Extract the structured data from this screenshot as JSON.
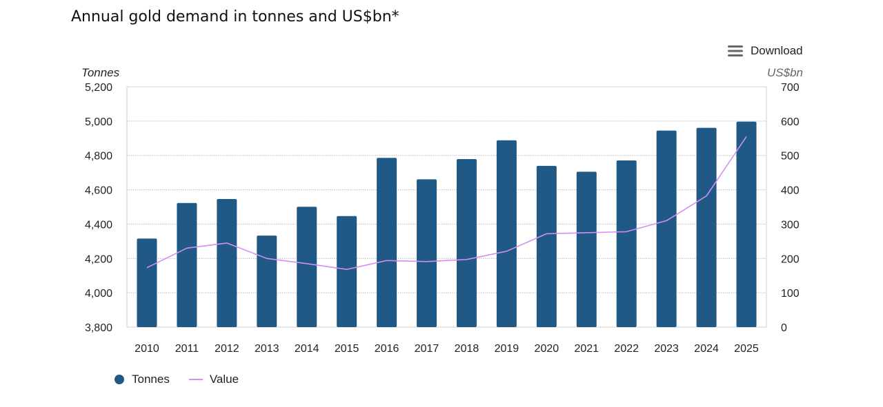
{
  "title": "Annual gold demand in tonnes and US$bn*",
  "download": {
    "label": "Download",
    "icon": "hamburger-menu-icon"
  },
  "colors": {
    "bar": "#205986",
    "line": "#d58ef0",
    "grid": "#b8b8b8",
    "axis_frame": "#cfcfcf",
    "axis_title": "#666666"
  },
  "chart_data": {
    "type": "bar",
    "title": "Annual gold demand in tonnes and US$bn*",
    "categories": [
      "2010",
      "2011",
      "2012",
      "2013",
      "2014",
      "2015",
      "2016",
      "2017",
      "2018",
      "2019",
      "2020",
      "2021",
      "2022",
      "2023",
      "2024",
      "2025"
    ],
    "series": [
      {
        "name": "Tonnes",
        "type": "bar",
        "axis": "left",
        "values": [
          4316,
          4523,
          4546,
          4333,
          4501,
          4447,
          4786,
          4661,
          4779,
          4888,
          4739,
          4705,
          4771,
          4945,
          4961,
          4997
        ]
      },
      {
        "name": "Value",
        "type": "line",
        "axis": "right",
        "values": [
          173,
          230,
          245,
          200,
          185,
          168,
          194,
          191,
          197,
          221,
          272,
          275,
          278,
          310,
          382,
          555
        ]
      }
    ],
    "y_left": {
      "label": "Tonnes",
      "lim": [
        3800,
        5200
      ],
      "ticks": [
        3800,
        4000,
        4200,
        4400,
        4600,
        4800,
        5000,
        5200
      ],
      "tick_labels": [
        "3,800",
        "4,000",
        "4,200",
        "4,400",
        "4,600",
        "4,800",
        "5,000",
        "5,200"
      ]
    },
    "y_right": {
      "label": "US$bn",
      "lim": [
        0,
        700
      ],
      "ticks": [
        0,
        100,
        200,
        300,
        400,
        500,
        600,
        700
      ],
      "tick_labels": [
        "0",
        "100",
        "200",
        "300",
        "400",
        "500",
        "600",
        "700"
      ]
    },
    "grid": true,
    "legend": {
      "position": "bottom-left",
      "items": [
        "Tonnes",
        "Value"
      ]
    }
  }
}
